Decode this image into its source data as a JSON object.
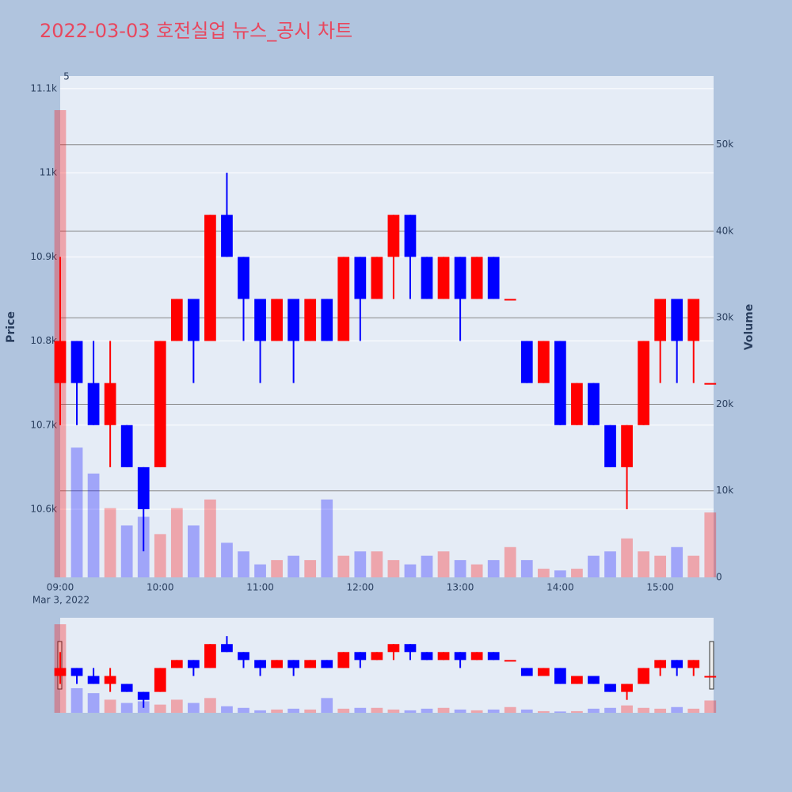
{
  "chart_data": {
    "type": "candlestick",
    "title": "2022-03-03 호전실업 뉴스_공시 차트",
    "title_color": "#e8475e",
    "y_label": "Price",
    "y2_label": "Volume",
    "annotation": "5",
    "x_sublabel": "Mar 3, 2022",
    "increasing_color": "#ff0000",
    "decreasing_color": "#0000ff",
    "x": [
      "09:00",
      "09:10",
      "09:20",
      "09:30",
      "09:40",
      "09:50",
      "10:00",
      "10:10",
      "10:20",
      "10:30",
      "10:40",
      "10:50",
      "11:00",
      "11:10",
      "11:20",
      "11:30",
      "11:40",
      "11:50",
      "12:00",
      "12:10",
      "12:20",
      "12:30",
      "12:40",
      "12:50",
      "13:00",
      "13:10",
      "13:20",
      "13:30",
      "13:40",
      "13:50",
      "14:00",
      "14:10",
      "14:20",
      "14:30",
      "14:40",
      "14:50",
      "15:00",
      "15:10",
      "15:20",
      "15:30"
    ],
    "open": [
      10750,
      10800,
      10750,
      10700,
      10700,
      10650,
      10650,
      10800,
      10850,
      10800,
      10950,
      10900,
      10850,
      10800,
      10850,
      10800,
      10850,
      10800,
      10900,
      10850,
      10900,
      10950,
      10900,
      10850,
      10900,
      10850,
      10900,
      10850,
      10800,
      10750,
      10800,
      10700,
      10750,
      10700,
      10650,
      10700,
      10800,
      10850,
      10800,
      10750
    ],
    "high": [
      10900,
      10800,
      10800,
      10800,
      10700,
      10650,
      10800,
      10850,
      10850,
      10950,
      11000,
      10900,
      10850,
      10850,
      10850,
      10850,
      10850,
      10900,
      10900,
      10900,
      10950,
      10950,
      10900,
      10900,
      10900,
      10900,
      10900,
      10850,
      10800,
      10800,
      10800,
      10750,
      10750,
      10700,
      10700,
      10800,
      10850,
      10850,
      10850,
      10750
    ],
    "low": [
      10700,
      10700,
      10700,
      10650,
      10650,
      10550,
      10650,
      10800,
      10750,
      10800,
      10900,
      10800,
      10750,
      10800,
      10750,
      10800,
      10800,
      10800,
      10800,
      10850,
      10850,
      10850,
      10850,
      10850,
      10800,
      10850,
      10850,
      10850,
      10750,
      10750,
      10700,
      10700,
      10700,
      10650,
      10600,
      10700,
      10750,
      10750,
      10750,
      10750
    ],
    "close": [
      10800,
      10750,
      10700,
      10750,
      10650,
      10600,
      10800,
      10850,
      10800,
      10950,
      10900,
      10850,
      10800,
      10850,
      10800,
      10850,
      10800,
      10900,
      10850,
      10900,
      10950,
      10900,
      10850,
      10900,
      10850,
      10900,
      10850,
      10850,
      10750,
      10800,
      10700,
      10750,
      10700,
      10650,
      10700,
      10800,
      10850,
      10800,
      10850,
      10750
    ],
    "volume": [
      54000,
      15000,
      12000,
      8000,
      6000,
      7000,
      5000,
      8000,
      6000,
      9000,
      4000,
      3000,
      1500,
      2000,
      2500,
      2000,
      9000,
      2500,
      3000,
      3000,
      2000,
      1500,
      2500,
      3000,
      2000,
      1500,
      2000,
      3500,
      2000,
      1000,
      800,
      1000,
      2500,
      3000,
      4500,
      3000,
      2500,
      3500,
      2500,
      7500
    ],
    "xlim": [
      "09:00",
      "15:32"
    ],
    "xticks": [
      "09:00",
      "10:00",
      "11:00",
      "12:00",
      "13:00",
      "14:00",
      "15:00"
    ],
    "ylim": [
      10519,
      11115
    ],
    "yticks": [
      {
        "value": 10600,
        "label": "10.6k"
      },
      {
        "value": 10700,
        "label": "10.7k"
      },
      {
        "value": 10800,
        "label": "10.8k"
      },
      {
        "value": 10900,
        "label": "10.9k"
      },
      {
        "value": 11000,
        "label": "11k"
      },
      {
        "value": 11100,
        "label": "11.1k"
      }
    ],
    "y2lim": [
      0,
      57940
    ],
    "y2ticks": [
      0,
      {
        "value": 10000,
        "label": "10k"
      },
      {
        "value": 20000,
        "label": "20k"
      },
      {
        "value": 30000,
        "label": "30k"
      },
      {
        "value": 40000,
        "label": "40k"
      },
      {
        "value": 50000,
        "label": "50k"
      }
    ]
  }
}
